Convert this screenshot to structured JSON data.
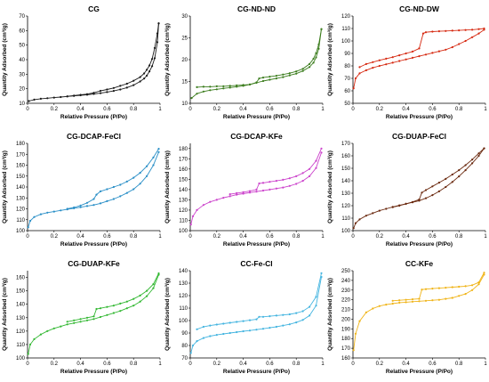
{
  "chart_data": [
    {
      "type": "line",
      "title": "CG",
      "xlabel": "Relative Pressure (P/Po)",
      "ylabel": "Quantity Adsorbed (cm³/g)",
      "xlim": [
        0,
        1
      ],
      "ylim": [
        10,
        70
      ],
      "xticks": [
        "0",
        "0.2",
        "0.4",
        "0.6",
        "0.8",
        "1"
      ],
      "yticks": [
        "10",
        "20",
        "30",
        "40",
        "50",
        "60",
        "70"
      ],
      "color": "#1a1a1a",
      "series": [
        {
          "x": [
            0.01,
            0.05,
            0.1,
            0.15,
            0.2,
            0.25,
            0.3,
            0.35,
            0.4,
            0.45,
            0.5,
            0.55,
            0.6,
            0.65,
            0.7,
            0.75,
            0.8,
            0.85,
            0.88,
            0.9,
            0.92,
            0.94,
            0.96,
            0.98,
            0.99
          ],
          "y": [
            11.5,
            12.5,
            13.1,
            13.5,
            13.9,
            14.3,
            14.7,
            15.1,
            15.5,
            15.9,
            16.4,
            17,
            17.7,
            18.5,
            19.5,
            20.8,
            22.5,
            25,
            27,
            29,
            32,
            35.5,
            41,
            52,
            65
          ]
        },
        {
          "x": [
            0.99,
            0.98,
            0.96,
            0.94,
            0.92,
            0.9,
            0.88,
            0.85,
            0.8,
            0.75,
            0.7,
            0.65,
            0.6,
            0.55,
            0.5,
            0.45,
            0.4,
            0.35,
            0.3
          ],
          "y": [
            65,
            58,
            48,
            40.5,
            36,
            33,
            30.5,
            28,
            25.5,
            23.5,
            22,
            20.5,
            19.5,
            18.6,
            17.2,
            16.3,
            15.8,
            15.3,
            14.8
          ]
        }
      ]
    },
    {
      "type": "line",
      "title": "CG-ND-ND",
      "xlabel": "Relative Pressure (P/Po)",
      "ylabel": "Quantity Adsorbed (cm³/g)",
      "xlim": [
        0,
        1
      ],
      "ylim": [
        10,
        30
      ],
      "xticks": [
        "0",
        "0.2",
        "0.4",
        "0.6",
        "0.8",
        "1"
      ],
      "yticks": [
        "10",
        "15",
        "20",
        "25",
        "30"
      ],
      "color": "#3c7d1e",
      "series": [
        {
          "x": [
            0.01,
            0.05,
            0.1,
            0.15,
            0.2,
            0.25,
            0.3,
            0.35,
            0.4,
            0.45,
            0.5,
            0.55,
            0.6,
            0.65,
            0.7,
            0.75,
            0.8,
            0.85,
            0.9,
            0.93,
            0.95,
            0.97,
            0.99
          ],
          "y": [
            11.2,
            12.2,
            12.7,
            13,
            13.2,
            13.4,
            13.6,
            13.8,
            14,
            14.3,
            14.7,
            15.1,
            15.4,
            15.7,
            16,
            16.4,
            16.8,
            17.4,
            18.3,
            19.3,
            20.5,
            22.5,
            27
          ]
        },
        {
          "x": [
            0.99,
            0.97,
            0.95,
            0.93,
            0.9,
            0.85,
            0.8,
            0.75,
            0.7,
            0.65,
            0.6,
            0.55,
            0.52,
            0.5,
            0.45,
            0.4,
            0.35,
            0.3,
            0.25,
            0.2,
            0.15,
            0.1,
            0.05
          ],
          "y": [
            27,
            23.5,
            21.5,
            20.2,
            19,
            17.9,
            17.3,
            16.9,
            16.6,
            16.3,
            16.1,
            15.9,
            15.7,
            14.8,
            14.3,
            14.2,
            14.1,
            14,
            13.9,
            13.9,
            13.8,
            13.8,
            13.7
          ]
        }
      ]
    },
    {
      "type": "line",
      "title": "CG-ND-DW",
      "xlabel": "Relative Pressure (P/Po)",
      "ylabel": "Quantity Adsorbed (cm³/g)",
      "xlim": [
        0,
        1
      ],
      "ylim": [
        50,
        120
      ],
      "xticks": [
        "0",
        "0.2",
        "0.4",
        "0.6",
        "0.8",
        "1"
      ],
      "yticks": [
        "50",
        "60",
        "70",
        "80",
        "90",
        "100",
        "110",
        "120"
      ],
      "color": "#d62a12",
      "series": [
        {
          "x": [
            0.005,
            0.02,
            0.05,
            0.1,
            0.15,
            0.2,
            0.25,
            0.3,
            0.35,
            0.4,
            0.45,
            0.5,
            0.55,
            0.6,
            0.65,
            0.7,
            0.75,
            0.8,
            0.85,
            0.9,
            0.95,
            0.99
          ],
          "y": [
            62,
            70,
            74,
            76.5,
            78.5,
            80,
            81.3,
            82.6,
            83.9,
            85.2,
            86.5,
            87.8,
            89.1,
            90.4,
            91.7,
            93,
            95,
            97.5,
            100,
            103,
            106,
            109
          ]
        },
        {
          "x": [
            0.99,
            0.95,
            0.9,
            0.85,
            0.8,
            0.75,
            0.7,
            0.65,
            0.6,
            0.55,
            0.53,
            0.5,
            0.45,
            0.4,
            0.35,
            0.3,
            0.25,
            0.2,
            0.15,
            0.1,
            0.05
          ],
          "y": [
            110,
            109.5,
            109,
            108.8,
            108.5,
            108.3,
            108,
            107.8,
            107.5,
            107,
            106,
            94,
            91.5,
            90,
            88.5,
            87,
            85.8,
            84.5,
            83,
            81.5,
            79
          ]
        }
      ]
    },
    {
      "type": "line",
      "title": "CG-DCAP-FeCl",
      "xlabel": "Relative Pressure (P/Po)",
      "ylabel": "Quantity Adsorbed (cm³/g)",
      "xlim": [
        0,
        1
      ],
      "ylim": [
        100,
        180
      ],
      "xticks": [
        "0",
        "0.2",
        "0.4",
        "0.6",
        "0.8",
        "1"
      ],
      "yticks": [
        "100",
        "110",
        "120",
        "130",
        "140",
        "150",
        "160",
        "170",
        "180"
      ],
      "color": "#2a8fc7",
      "series": [
        {
          "x": [
            0.005,
            0.02,
            0.05,
            0.1,
            0.15,
            0.2,
            0.25,
            0.3,
            0.35,
            0.4,
            0.45,
            0.5,
            0.55,
            0.6,
            0.65,
            0.7,
            0.75,
            0.8,
            0.85,
            0.9,
            0.95,
            0.99
          ],
          "y": [
            103,
            109,
            112.5,
            115,
            116.5,
            117.5,
            118.5,
            119.5,
            120.5,
            121.5,
            122.5,
            123.5,
            125,
            127,
            129,
            131.5,
            134.5,
            138,
            143,
            150,
            160,
            172
          ]
        },
        {
          "x": [
            0.99,
            0.95,
            0.9,
            0.85,
            0.8,
            0.75,
            0.7,
            0.65,
            0.6,
            0.55,
            0.52,
            0.5,
            0.45,
            0.4,
            0.35,
            0.3
          ],
          "y": [
            175,
            167,
            159,
            153,
            148.5,
            145,
            142,
            140,
            138,
            136,
            133,
            129,
            125.5,
            123,
            121.2,
            120
          ]
        }
      ]
    },
    {
      "type": "line",
      "title": "CG-DCAP-KFe",
      "xlabel": "Relative Pressure (P/Po)",
      "ylabel": "Quantity Adsorbed (cm³/g)",
      "xlim": [
        0,
        1
      ],
      "ylim": [
        100,
        185
      ],
      "xticks": [
        "0",
        "0.2",
        "0.4",
        "0.6",
        "0.8",
        "1"
      ],
      "yticks": [
        "100",
        "110",
        "120",
        "130",
        "140",
        "150",
        "160",
        "170",
        "180"
      ],
      "color": "#cc44cc",
      "series": [
        {
          "x": [
            0.005,
            0.02,
            0.05,
            0.1,
            0.15,
            0.2,
            0.25,
            0.3,
            0.35,
            0.4,
            0.45,
            0.5,
            0.55,
            0.6,
            0.65,
            0.7,
            0.75,
            0.8,
            0.85,
            0.9,
            0.95,
            0.99
          ],
          "y": [
            106,
            114,
            120,
            125,
            128,
            130,
            132,
            133.5,
            135,
            136,
            137,
            138,
            139,
            140,
            141,
            142,
            143.5,
            145.5,
            148.5,
            153,
            161,
            176
          ]
        },
        {
          "x": [
            0.99,
            0.95,
            0.9,
            0.85,
            0.8,
            0.75,
            0.7,
            0.65,
            0.6,
            0.55,
            0.52,
            0.5,
            0.45,
            0.4,
            0.35,
            0.3
          ],
          "y": [
            180,
            168,
            160,
            156,
            153,
            151,
            149.5,
            148.5,
            147.5,
            146.5,
            146,
            140,
            138.5,
            137.5,
            136.5,
            135.5
          ]
        }
      ]
    },
    {
      "type": "line",
      "title": "CG-DUAP-FeCl",
      "xlabel": "Relative Pressure (P/Po)",
      "ylabel": "Quantity Adsorbed (cm³/g)",
      "xlim": [
        0,
        1
      ],
      "ylim": [
        100,
        170
      ],
      "xticks": [
        "0",
        "0.2",
        "0.4",
        "0.6",
        "0.8",
        "1"
      ],
      "yticks": [
        "100",
        "110",
        "120",
        "130",
        "140",
        "150",
        "160",
        "170"
      ],
      "color": "#6b2a10",
      "series": [
        {
          "x": [
            0.005,
            0.02,
            0.05,
            0.1,
            0.15,
            0.2,
            0.25,
            0.3,
            0.35,
            0.4,
            0.45,
            0.5,
            0.55,
            0.6,
            0.65,
            0.7,
            0.75,
            0.8,
            0.85,
            0.9,
            0.95,
            0.99
          ],
          "y": [
            102,
            106,
            109,
            112,
            114,
            116,
            117.5,
            119,
            120.3,
            121.5,
            122.7,
            124,
            126,
            128.5,
            131.5,
            135,
            139,
            143.5,
            148.5,
            154,
            160,
            166
          ]
        },
        {
          "x": [
            0.99,
            0.95,
            0.9,
            0.85,
            0.8,
            0.75,
            0.7,
            0.65,
            0.6,
            0.55,
            0.52,
            0.5,
            0.45,
            0.4,
            0.35,
            0.3
          ],
          "y": [
            166,
            162,
            157,
            152.5,
            148.5,
            145,
            141.5,
            138.5,
            135.5,
            132.5,
            130.5,
            125,
            123,
            121.5,
            120,
            118.8
          ]
        }
      ]
    },
    {
      "type": "line",
      "title": "CG-DUAP-KFe",
      "xlabel": "Relative Pressure (P/Po)",
      "ylabel": "Quantity Adsorbed (cm³/g)",
      "xlim": [
        0,
        1
      ],
      "ylim": [
        100,
        165
      ],
      "xticks": [
        "0",
        "0.2",
        "0.4",
        "0.6",
        "0.8",
        "1"
      ],
      "yticks": [
        "100",
        "110",
        "120",
        "130",
        "140",
        "150",
        "160"
      ],
      "color": "#33b833",
      "series": [
        {
          "x": [
            0.005,
            0.02,
            0.05,
            0.1,
            0.15,
            0.2,
            0.25,
            0.3,
            0.35,
            0.4,
            0.45,
            0.5,
            0.55,
            0.6,
            0.65,
            0.7,
            0.75,
            0.8,
            0.85,
            0.9,
            0.95,
            0.99
          ],
          "y": [
            103,
            110,
            114,
            117.5,
            120,
            122,
            123.5,
            125,
            126,
            127,
            128,
            129,
            130.5,
            132,
            133.5,
            135,
            137,
            139,
            142,
            146,
            152,
            162
          ]
        },
        {
          "x": [
            0.99,
            0.95,
            0.9,
            0.85,
            0.8,
            0.75,
            0.7,
            0.65,
            0.6,
            0.55,
            0.52,
            0.5,
            0.45,
            0.4,
            0.35,
            0.3
          ],
          "y": [
            163,
            155,
            150,
            146.5,
            144,
            142,
            140.5,
            139,
            138,
            137,
            136.5,
            131,
            130,
            129,
            128,
            127
          ]
        }
      ]
    },
    {
      "type": "line",
      "title": "CC-Fe-Cl",
      "xlabel": "Relative Pressure (P/Po)",
      "ylabel": "Quantity Adsorbed (cm³/g)",
      "xlim": [
        0,
        1
      ],
      "ylim": [
        70,
        140
      ],
      "xticks": [
        "0",
        "0.2",
        "0.4",
        "0.6",
        "0.8",
        "1"
      ],
      "yticks": [
        "70",
        "80",
        "90",
        "100",
        "110",
        "120",
        "130",
        "140"
      ],
      "color": "#45b5e0",
      "series": [
        {
          "x": [
            0.005,
            0.02,
            0.05,
            0.1,
            0.15,
            0.2,
            0.25,
            0.3,
            0.35,
            0.4,
            0.45,
            0.5,
            0.55,
            0.6,
            0.65,
            0.7,
            0.75,
            0.8,
            0.85,
            0.9,
            0.95,
            0.99
          ],
          "y": [
            74,
            80,
            83.5,
            86,
            87.5,
            88.5,
            89.3,
            90,
            90.7,
            91.4,
            92,
            92.7,
            93.4,
            94.2,
            95,
            96,
            97,
            98.5,
            100.5,
            104,
            112,
            135
          ]
        },
        {
          "x": [
            0.99,
            0.95,
            0.9,
            0.85,
            0.8,
            0.75,
            0.7,
            0.65,
            0.6,
            0.55,
            0.52,
            0.5,
            0.45,
            0.4,
            0.35,
            0.3,
            0.25,
            0.2,
            0.15,
            0.1,
            0.05
          ],
          "y": [
            138,
            119,
            111,
            107.5,
            106,
            105,
            104.5,
            104,
            103.5,
            103,
            103,
            101,
            100.3,
            99.6,
            98.9,
            98.2,
            97.5,
            96.8,
            96,
            95,
            93
          ]
        }
      ]
    },
    {
      "type": "line",
      "title": "CC-KFe",
      "xlabel": "Relative Pressure (P/Po)",
      "ylabel": "Quantity Adsorbed (cm³/g)",
      "xlim": [
        0,
        1
      ],
      "ylim": [
        160,
        250
      ],
      "xticks": [
        "0",
        "0.2",
        "0.4",
        "0.6",
        "0.8",
        "1"
      ],
      "yticks": [
        "160",
        "170",
        "180",
        "190",
        "200",
        "210",
        "220",
        "230",
        "240",
        "250"
      ],
      "color": "#f0b418",
      "series": [
        {
          "x": [
            0.005,
            0.02,
            0.05,
            0.1,
            0.15,
            0.2,
            0.25,
            0.3,
            0.35,
            0.4,
            0.45,
            0.5,
            0.55,
            0.6,
            0.65,
            0.7,
            0.75,
            0.8,
            0.85,
            0.9,
            0.95,
            0.99
          ],
          "y": [
            168,
            185,
            198,
            207,
            211,
            213.5,
            215,
            216,
            217,
            217.5,
            218,
            218.5,
            219,
            219.5,
            220,
            221,
            222,
            224,
            226,
            230,
            236,
            246
          ]
        },
        {
          "x": [
            0.99,
            0.95,
            0.9,
            0.85,
            0.8,
            0.75,
            0.7,
            0.65,
            0.6,
            0.55,
            0.52,
            0.5,
            0.45,
            0.4,
            0.35,
            0.3
          ],
          "y": [
            248,
            238,
            235,
            234,
            233.5,
            233,
            232.5,
            232,
            231.5,
            231,
            230.5,
            221,
            220.5,
            220,
            219.5,
            219
          ]
        }
      ]
    }
  ]
}
